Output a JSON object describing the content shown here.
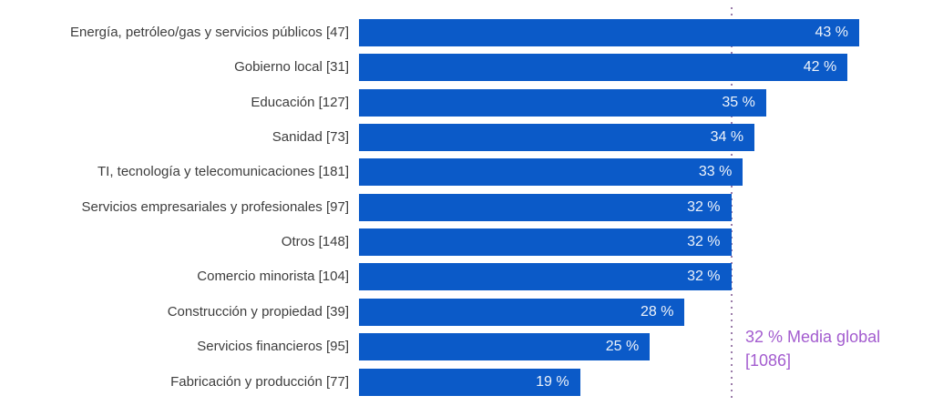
{
  "chart_data": {
    "type": "bar",
    "orientation": "horizontal",
    "unit": "%",
    "title": "",
    "xlabel": "",
    "ylabel": "",
    "xlim": [
      0,
      43
    ],
    "grid": false,
    "legend": null,
    "categories": [
      "Energía, petróleo/gas y servicios públicos [47]",
      "Gobierno local [31]",
      "Educación [127]",
      "Sanidad [73]",
      "TI, tecnología y telecomunicaciones [181]",
      "Servicios empresariales y profesionales [97]",
      "Otros [148]",
      "Comercio minorista [104]",
      "Construcción y propiedad [39]",
      "Servicios financieros [95]",
      "Fabricación y producción [77]"
    ],
    "values": [
      43,
      42,
      35,
      34,
      33,
      32,
      32,
      32,
      28,
      25,
      19
    ],
    "value_suffix": " %",
    "annotation": {
      "line1": "32 % Media global",
      "line2": "[1086]",
      "value": 32
    },
    "colors": {
      "bar": "#0b5ac8",
      "category_label": "#3d3d3d",
      "value_label": "#eef3fa",
      "annotation": "#a35ccf",
      "average_line": "#9b7ca9",
      "background": "#ffffff"
    }
  }
}
